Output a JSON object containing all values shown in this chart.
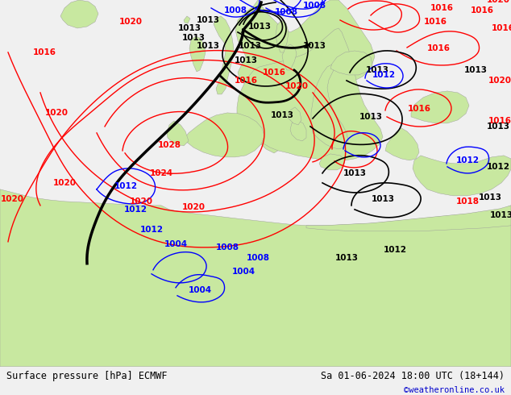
{
  "title_left": "Surface pressure [hPa] ECMWF",
  "title_right": "Sa 01-06-2024 18:00 UTC (18+144)",
  "watermark": "©weatheronline.co.uk",
  "watermark_color": "#0000cc",
  "bg_color": "#e8e8e8",
  "land_color": "#c8e8a0",
  "sea_color": "#d8e0ec",
  "mountain_color": "#b8b8b8",
  "figsize": [
    6.34,
    4.9
  ],
  "dpi": 100,
  "bottom_bar_color": "#f0f0f0",
  "bottom_bar_height": 0.072
}
